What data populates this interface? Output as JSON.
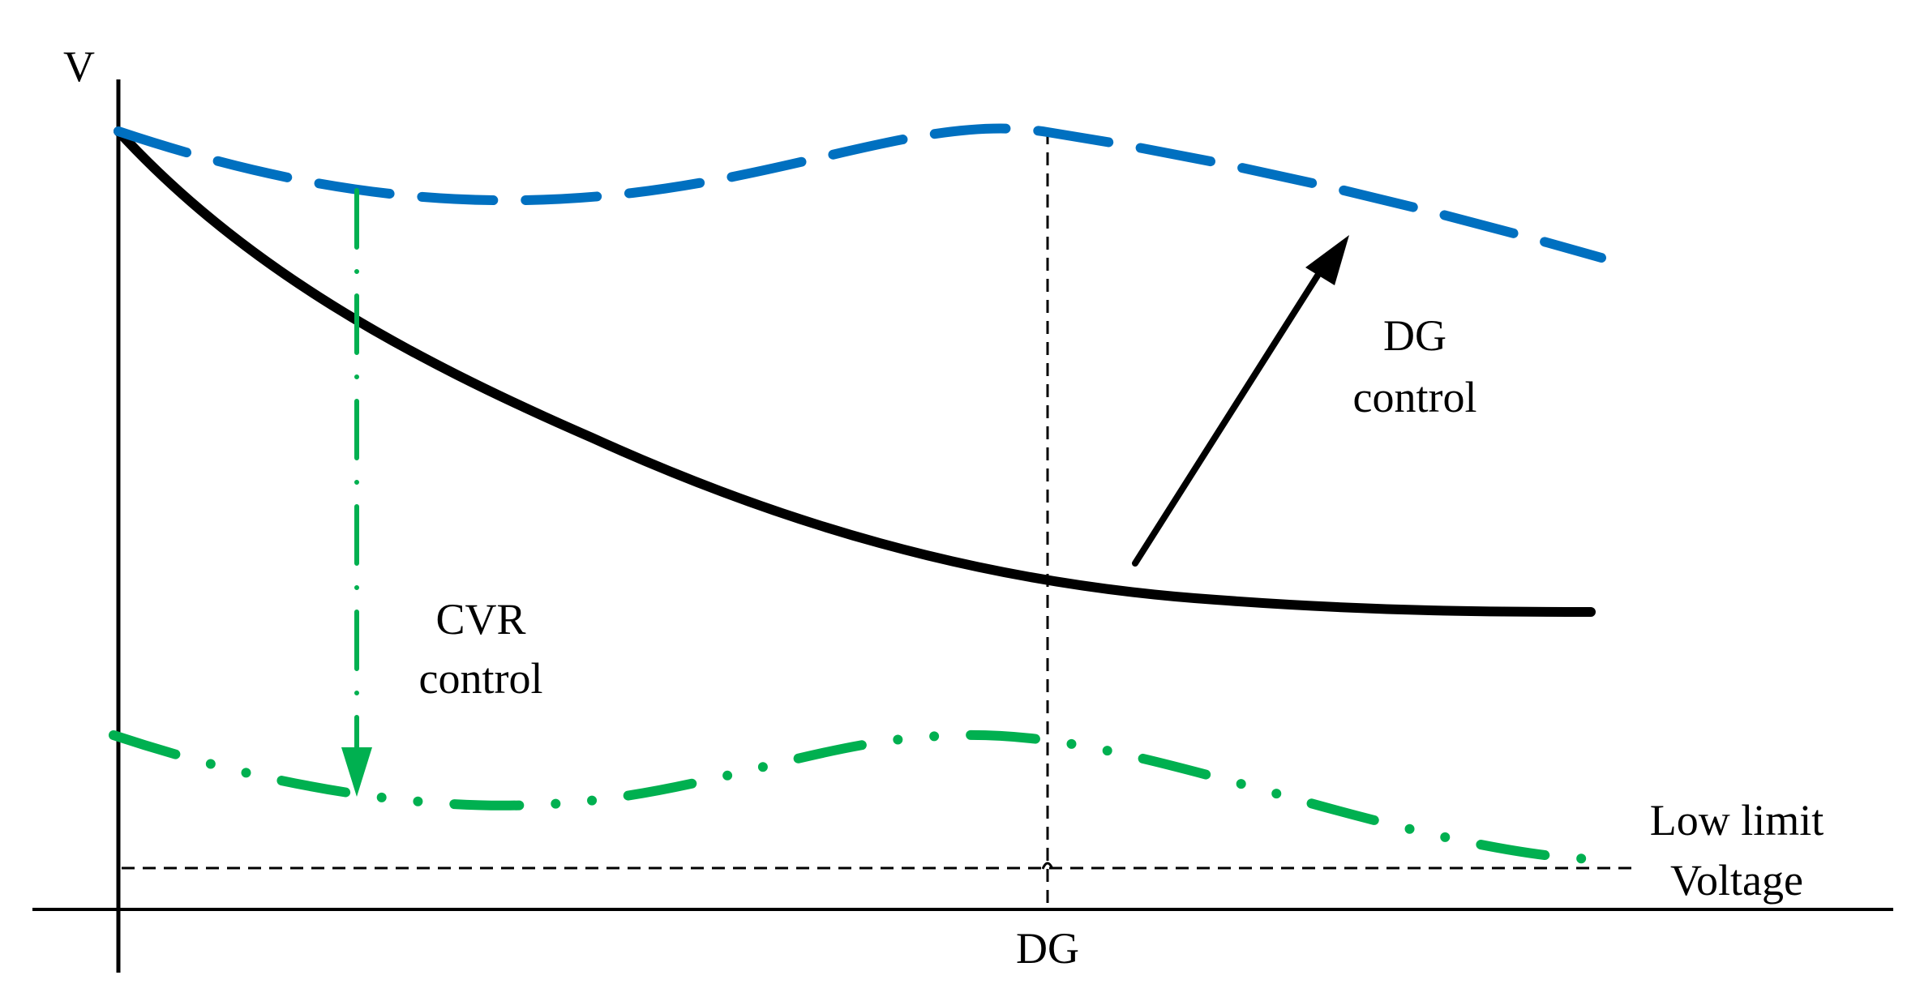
{
  "labels": {
    "y_axis": "V",
    "x_tick": "DG",
    "dg_control": [
      "DG",
      "control"
    ],
    "cvr_control": [
      "CVR",
      "control"
    ],
    "low_limit": [
      "Low limit",
      "Voltage"
    ]
  },
  "colors": {
    "axis": "#000000",
    "base_curve": "#000000",
    "dg_curve": "#0070C0",
    "cvr_curve": "#00B050",
    "guide": "#000000"
  }
}
